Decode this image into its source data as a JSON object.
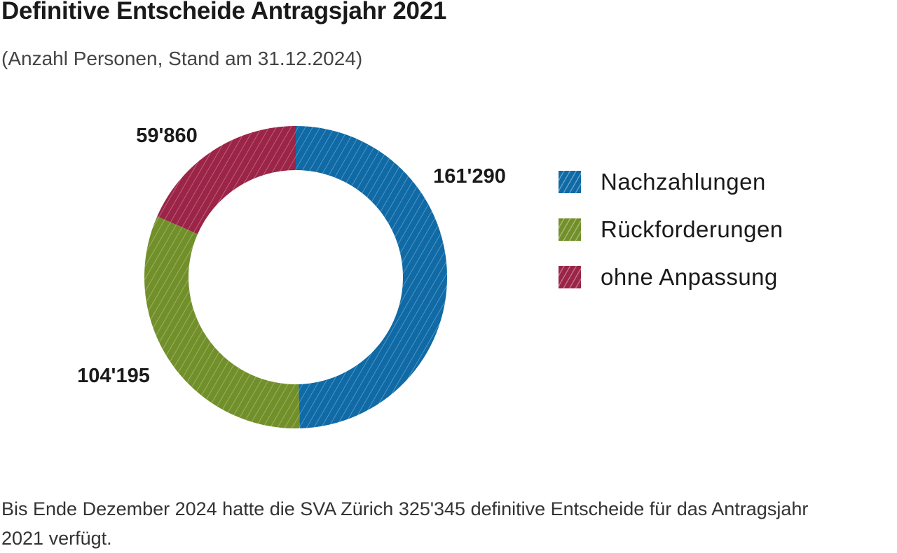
{
  "title": "Definitive Entscheide Antragsjahr 2021",
  "subtitle": "(Anzahl Personen, Stand am 31.12.2024)",
  "footnote": "Bis Ende Dezember 2024 hatte die SVA Zürich 325'345 definitive Entscheide für das Antragsjahr 2021 verfügt.",
  "chart_data": {
    "type": "pie",
    "donut": true,
    "title": "Definitive Entscheide Antragsjahr 2021",
    "subtitle": "(Anzahl Personen, Stand am 31.12.2024)",
    "legend_position": "right",
    "categories": [
      "Nachzahlungen",
      "Rückforderungen",
      "ohne Anpassung"
    ],
    "values": [
      161290,
      104195,
      59860
    ],
    "value_labels": [
      "161'290",
      "104'195",
      "59'860"
    ],
    "colors": [
      "#0f6aa6",
      "#72902a",
      "#9b2447"
    ]
  }
}
